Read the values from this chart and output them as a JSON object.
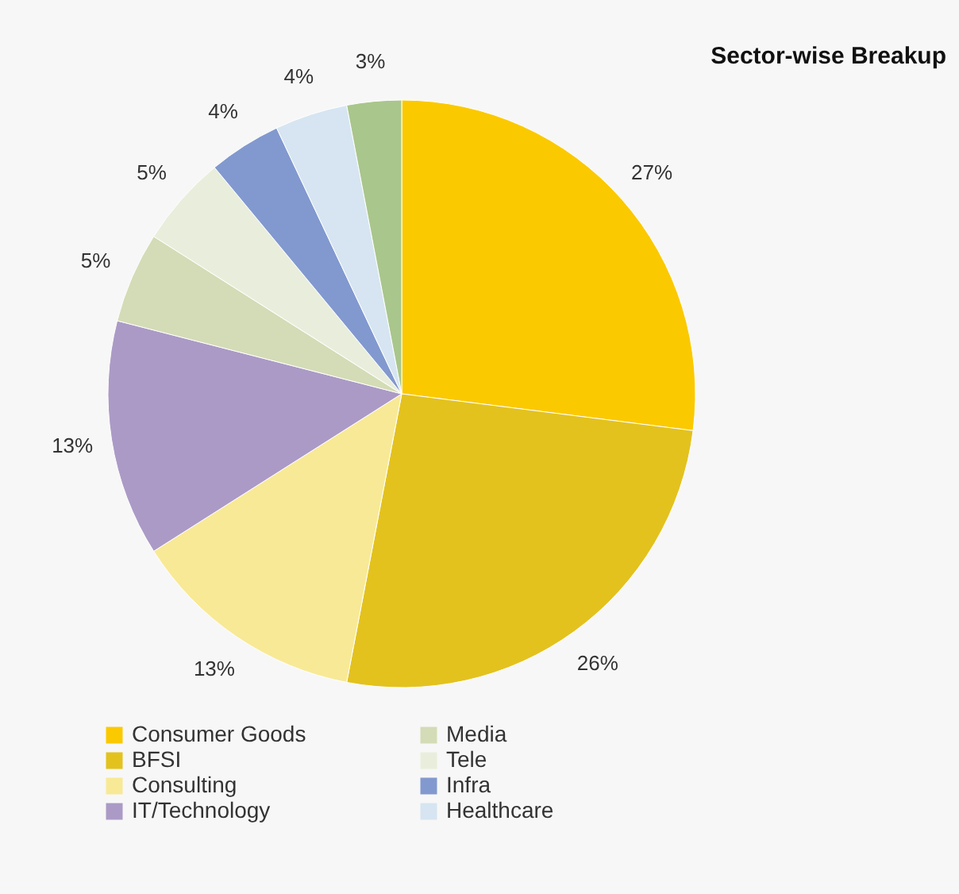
{
  "chart_data": {
    "type": "pie",
    "title": "Sector-wise Breakup",
    "categories": [
      "Consumer Goods",
      "BFSI",
      "Consulting",
      "IT/Technology",
      "Media",
      "Tele",
      "Infra",
      "Healthcare",
      null
    ],
    "values": [
      27,
      26,
      13,
      13,
      5,
      5,
      4,
      4,
      3
    ],
    "value_labels": [
      "27%",
      "26%",
      "13%",
      "13%",
      "5%",
      "5%",
      "4%",
      "4%",
      "3%"
    ],
    "colors": [
      "#fbc900",
      "#e3c21e",
      "#f8e996",
      "#ab9ac6",
      "#d3dcb6",
      "#e9eedc",
      "#8299cf",
      "#d6e5f1",
      "#a9c68c"
    ],
    "legend": "bottom"
  }
}
